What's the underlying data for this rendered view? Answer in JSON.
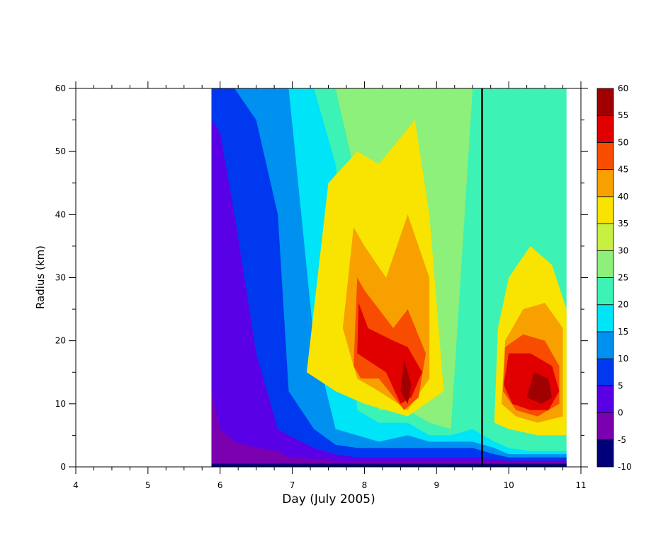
{
  "chart_data": {
    "type": "filled-contour",
    "xlabel": "Day (July 2005)",
    "ylabel": "Radius (km)",
    "xlim": [
      4,
      11
    ],
    "ylim": [
      0,
      60
    ],
    "x_ticks": [
      "4",
      "5",
      "6",
      "7",
      "8",
      "9",
      "10",
      "11"
    ],
    "y_ticks": [
      "0",
      "10",
      "20",
      "30",
      "40",
      "50",
      "60"
    ],
    "data_start_day": 5.88,
    "data_end_day": 10.8,
    "vertical_marker_day": 9.63,
    "contour_levels": [
      -10,
      -5,
      0,
      5,
      10,
      15,
      20,
      25,
      30,
      35,
      40,
      45,
      50,
      55,
      60
    ],
    "colorbar_labels": [
      "-10",
      "-5",
      "0",
      "5",
      "10",
      "15",
      "20",
      "25",
      "30",
      "35",
      "40",
      "45",
      "50",
      "55",
      "60"
    ],
    "colorbar_colors": [
      "#00007a",
      "#7a00b0",
      "#5a00e6",
      "#0038f0",
      "#0090f0",
      "#00e4f8",
      "#3cf2b4",
      "#8cf07a",
      "#c8f040",
      "#f8e400",
      "#f8a000",
      "#f84c00",
      "#e00000",
      "#a00000"
    ],
    "columns_day": [
      5.9,
      6.0,
      6.2,
      6.5,
      6.8,
      6.95,
      7.3,
      7.6,
      7.9,
      8.2,
      8.6,
      8.9,
      9.2,
      9.5,
      9.8,
      10.0,
      10.3,
      10.6,
      10.8
    ],
    "boundary_radius_km": [
      [
        0.5,
        0.5,
        0.5,
        0.5,
        0.5,
        0.5,
        0.5,
        0.5,
        0.5,
        0.5,
        0.5,
        0.5,
        0.5,
        0.5,
        0.5,
        0.5,
        0.5,
        0.5,
        0.5
      ],
      [
        12,
        6,
        4,
        3,
        2.5,
        1.5,
        1.2,
        1.0,
        0.8,
        0.8,
        0.8,
        0.8,
        0.8,
        0.8,
        0.8,
        0.8,
        0.8,
        0.8,
        0.8
      ],
      [
        55,
        53,
        40,
        18,
        6,
        5,
        3,
        2,
        1.5,
        1.5,
        1.5,
        1.5,
        1.5,
        1.5,
        1.2,
        1,
        1,
        1,
        1
      ],
      [
        60,
        60,
        60,
        55,
        40,
        12,
        6,
        3.5,
        3,
        3,
        3,
        3,
        3,
        3,
        2,
        1.5,
        1.5,
        1.5,
        1.5
      ],
      [
        60,
        60,
        60,
        60,
        60,
        60,
        20,
        6,
        5,
        4,
        5,
        4,
        4,
        4,
        3,
        2,
        2,
        2,
        2
      ],
      [
        60,
        60,
        60,
        60,
        60,
        60,
        60,
        48,
        9,
        7,
        7,
        5,
        5,
        6,
        4,
        3,
        2.5,
        2.5,
        2.5
      ],
      [
        60,
        60,
        60,
        60,
        60,
        60,
        60,
        60,
        45,
        9,
        9,
        7,
        6,
        60,
        60,
        60,
        60,
        60,
        60
      ],
      [
        60,
        60,
        60,
        60,
        60,
        60,
        60,
        60,
        60,
        12,
        11,
        9,
        8,
        60,
        8,
        4,
        3.5,
        3,
        3
      ],
      [
        60,
        60,
        60,
        60,
        60,
        60,
        60,
        60,
        60,
        55,
        13,
        11,
        10,
        60,
        33,
        5,
        4,
        4,
        4
      ],
      [
        60,
        60,
        60,
        60,
        60,
        60,
        60,
        60,
        60,
        60,
        55,
        60,
        60,
        60,
        60,
        6,
        5,
        5,
        6
      ],
      [
        60,
        60,
        60,
        60,
        60,
        60,
        60,
        60,
        60,
        60,
        60,
        60,
        60,
        60,
        60,
        10,
        7,
        7,
        60
      ],
      [
        60,
        60,
        60,
        60,
        60,
        60,
        60,
        60,
        60,
        60,
        60,
        60,
        60,
        60,
        60,
        60,
        60,
        60,
        60
      ],
      [
        60,
        60,
        60,
        60,
        60,
        60,
        60,
        60,
        60,
        60,
        60,
        60,
        60,
        60,
        60,
        60,
        60,
        60,
        60
      ],
      [
        60,
        60,
        60,
        60,
        60,
        60,
        60,
        60,
        60,
        60,
        60,
        60,
        60,
        60,
        60,
        60,
        60,
        60,
        60
      ]
    ],
    "warm_regions": [
      {
        "color": "#f8e400",
        "points": [
          [
            7.2,
            15
          ],
          [
            7.5,
            45
          ],
          [
            7.9,
            50
          ],
          [
            8.2,
            48
          ],
          [
            8.7,
            55
          ],
          [
            8.9,
            40
          ],
          [
            9.1,
            12
          ],
          [
            8.6,
            8
          ],
          [
            8.0,
            10
          ],
          [
            7.6,
            12
          ]
        ]
      },
      {
        "color": "#f8a000",
        "points": [
          [
            7.7,
            22
          ],
          [
            7.85,
            38
          ],
          [
            8.0,
            35
          ],
          [
            8.3,
            30
          ],
          [
            8.6,
            40
          ],
          [
            8.9,
            30
          ],
          [
            8.9,
            14
          ],
          [
            8.6,
            9
          ],
          [
            8.2,
            12
          ],
          [
            7.9,
            14
          ]
        ]
      },
      {
        "color": "#f84c00",
        "points": [
          [
            7.85,
            16
          ],
          [
            7.9,
            30
          ],
          [
            8.0,
            28
          ],
          [
            8.4,
            22
          ],
          [
            8.6,
            25
          ],
          [
            8.85,
            18
          ],
          [
            8.75,
            11
          ],
          [
            8.55,
            9
          ],
          [
            8.2,
            14
          ],
          [
            7.95,
            14
          ]
        ]
      },
      {
        "color": "#e00000",
        "points": [
          [
            7.9,
            18
          ],
          [
            7.92,
            26
          ],
          [
            8.05,
            22
          ],
          [
            8.4,
            20
          ],
          [
            8.6,
            19
          ],
          [
            8.8,
            15
          ],
          [
            8.65,
            11
          ],
          [
            8.5,
            10
          ],
          [
            8.3,
            15
          ]
        ]
      },
      {
        "color": "#a00000",
        "points": [
          [
            8.5,
            12
          ],
          [
            8.55,
            17
          ],
          [
            8.65,
            13
          ],
          [
            8.6,
            10
          ]
        ]
      },
      {
        "color": "#f8e400",
        "points": [
          [
            9.8,
            7
          ],
          [
            9.85,
            22
          ],
          [
            10.0,
            30
          ],
          [
            10.3,
            35
          ],
          [
            10.6,
            32
          ],
          [
            10.8,
            25
          ],
          [
            10.8,
            5
          ],
          [
            10.4,
            5
          ],
          [
            10.0,
            6
          ]
        ]
      },
      {
        "color": "#f8a000",
        "points": [
          [
            9.9,
            10
          ],
          [
            9.95,
            20
          ],
          [
            10.2,
            25
          ],
          [
            10.5,
            26
          ],
          [
            10.75,
            22
          ],
          [
            10.75,
            8
          ],
          [
            10.4,
            7
          ],
          [
            10.1,
            8
          ]
        ]
      },
      {
        "color": "#f84c00",
        "points": [
          [
            9.92,
            12
          ],
          [
            9.95,
            19
          ],
          [
            10.2,
            21
          ],
          [
            10.5,
            20
          ],
          [
            10.7,
            16
          ],
          [
            10.7,
            10
          ],
          [
            10.4,
            8
          ],
          [
            10.1,
            9
          ]
        ]
      },
      {
        "color": "#e00000",
        "points": [
          [
            9.93,
            13
          ],
          [
            10.0,
            18
          ],
          [
            10.3,
            18
          ],
          [
            10.6,
            16
          ],
          [
            10.7,
            12
          ],
          [
            10.55,
            9
          ],
          [
            10.3,
            9
          ],
          [
            10.05,
            10
          ]
        ]
      },
      {
        "color": "#a00000",
        "points": [
          [
            10.25,
            11
          ],
          [
            10.35,
            15
          ],
          [
            10.55,
            14
          ],
          [
            10.6,
            11
          ],
          [
            10.45,
            10
          ]
        ]
      }
    ]
  }
}
